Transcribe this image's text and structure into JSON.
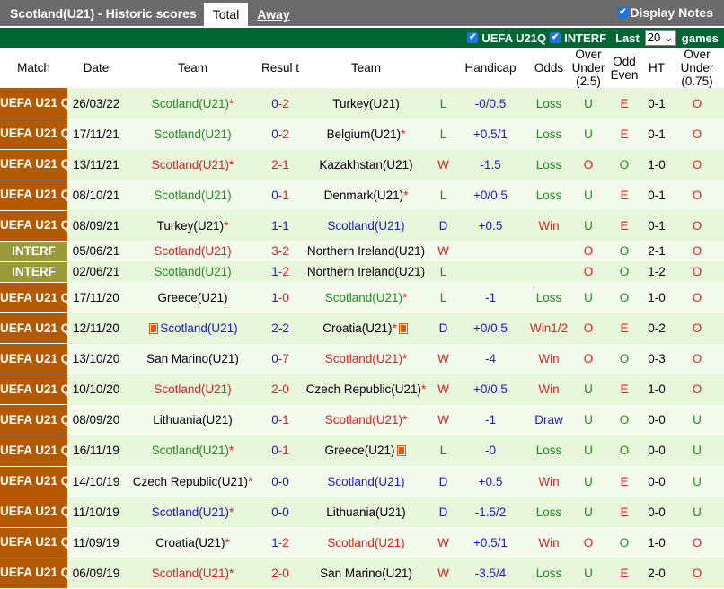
{
  "header": {
    "title": "Scotland(U21) - Historic scores",
    "tabs": [
      {
        "label": "Total",
        "active": true
      },
      {
        "label": "Away",
        "active": false
      }
    ],
    "display_notes": {
      "label": "Display Notes",
      "checked": true
    }
  },
  "filter": {
    "comps": [
      {
        "label": "UEFA U21Q",
        "checked": true
      },
      {
        "label": "INTERF",
        "checked": true
      }
    ],
    "last_label": "Last",
    "last_value": "20",
    "games_label": "games"
  },
  "columns": [
    "Match",
    "Date",
    "Team",
    "Resul t",
    "Team",
    "",
    "Handicap",
    "Odds",
    "Over Under (2.5)",
    "Odd Even",
    "HT",
    "Over Under (0.75)"
  ],
  "colors": {
    "win": "#e02020",
    "loss": "#228b22",
    "draw": "#1a1acc",
    "comp_uefa": "#b35900",
    "comp_interf": "#9a9a3a",
    "header_bar": "#006633"
  },
  "rows": [
    {
      "comp": "UEFA U21 Q",
      "date": "26/03/22",
      "home": "Scotland(U21)",
      "hs": true,
      "score": "0-2",
      "away": "Turkey(U21)",
      "as": false,
      "res": "L",
      "hcp": "-0/0.5",
      "odds": "Loss",
      "ou": "U",
      "oe": "E",
      "ht": "0-1",
      "ou2": "O",
      "scot": "home"
    },
    {
      "comp": "UEFA U21 Q",
      "date": "17/11/21",
      "home": "Scotland(U21)",
      "hs": false,
      "score": "0-2",
      "away": "Belgium(U21)",
      "as": true,
      "res": "L",
      "hcp": "+0.5/1",
      "odds": "Loss",
      "ou": "U",
      "oe": "E",
      "ht": "0-1",
      "ou2": "O",
      "scot": "home"
    },
    {
      "comp": "UEFA U21 Q",
      "date": "13/11/21",
      "home": "Scotland(U21)",
      "hs": true,
      "score": "2-1",
      "away": "Kazakhstan(U21)",
      "as": false,
      "res": "W",
      "hcp": "-1.5",
      "odds": "Loss",
      "ou": "O",
      "oe": "O",
      "ht": "1-0",
      "ou2": "O",
      "scot": "home"
    },
    {
      "comp": "UEFA U21 Q",
      "date": "08/10/21",
      "home": "Scotland(U21)",
      "hs": false,
      "score": "0-1",
      "away": "Denmark(U21)",
      "as": true,
      "res": "L",
      "hcp": "+0/0.5",
      "odds": "Loss",
      "ou": "U",
      "oe": "E",
      "ht": "0-1",
      "ou2": "O",
      "scot": "home"
    },
    {
      "comp": "UEFA U21 Q",
      "date": "08/09/21",
      "home": "Turkey(U21)",
      "hs": true,
      "score": "1-1",
      "away": "Scotland(U21)",
      "as": false,
      "res": "D",
      "hcp": "+0.5",
      "odds": "Win",
      "ou": "U",
      "oe": "E",
      "ht": "0-1",
      "ou2": "O",
      "scot": "away"
    },
    {
      "comp": "INTERF",
      "date": "05/06/21",
      "home": "Scotland(U21)",
      "hs": false,
      "score": "3-2",
      "away": "Northern Ireland(U21)",
      "as": false,
      "res": "W",
      "hcp": "",
      "odds": "",
      "ou": "O",
      "oe": "O",
      "ht": "2-1",
      "ou2": "O",
      "scot": "home"
    },
    {
      "comp": "INTERF",
      "date": "02/06/21",
      "home": "Scotland(U21)",
      "hs": false,
      "score": "1-2",
      "away": "Northern Ireland(U21)",
      "as": false,
      "res": "L",
      "hcp": "",
      "odds": "",
      "ou": "O",
      "oe": "O",
      "ht": "1-2",
      "ou2": "O",
      "scot": "home"
    },
    {
      "comp": "UEFA U21 Q",
      "date": "17/11/20",
      "home": "Greece(U21)",
      "hs": false,
      "score": "1-0",
      "away": "Scotland(U21)",
      "as": true,
      "res": "L",
      "hcp": "-1",
      "odds": "Loss",
      "ou": "U",
      "oe": "O",
      "ht": "1-0",
      "ou2": "O",
      "scot": "away"
    },
    {
      "comp": "UEFA U21 Q",
      "date": "12/11/20",
      "home": "Scotland(U21)",
      "hs": false,
      "hcard": true,
      "score": "2-2",
      "away": "Croatia(U21)",
      "as": true,
      "acard": true,
      "res": "D",
      "hcp": "+0/0.5",
      "odds": "Win1/2",
      "ou": "O",
      "oe": "E",
      "ht": "0-2",
      "ou2": "O",
      "scot": "home"
    },
    {
      "comp": "UEFA U21 Q",
      "date": "13/10/20",
      "home": "San Marino(U21)",
      "hs": false,
      "score": "0-7",
      "away": "Scotland(U21)",
      "as": true,
      "res": "W",
      "hcp": "-4",
      "odds": "Win",
      "ou": "O",
      "oe": "O",
      "ht": "0-3",
      "ou2": "O",
      "scot": "away"
    },
    {
      "comp": "UEFA U21 Q",
      "date": "10/10/20",
      "home": "Scotland(U21)",
      "hs": false,
      "score": "2-0",
      "away": "Czech Republic(U21)",
      "as": true,
      "res": "W",
      "hcp": "+0/0.5",
      "odds": "Win",
      "ou": "U",
      "oe": "E",
      "ht": "1-0",
      "ou2": "O",
      "scot": "home"
    },
    {
      "comp": "UEFA U21 Q",
      "date": "08/09/20",
      "home": "Lithuania(U21)",
      "hs": false,
      "score": "0-1",
      "away": "Scotland(U21)",
      "as": true,
      "res": "W",
      "hcp": "-1",
      "odds": "Draw",
      "ou": "U",
      "oe": "O",
      "ht": "0-0",
      "ou2": "U",
      "scot": "away"
    },
    {
      "comp": "UEFA U21 Q",
      "date": "16/11/19",
      "home": "Scotland(U21)",
      "hs": true,
      "score": "0-1",
      "away": "Greece(U21)",
      "as": false,
      "acard": true,
      "res": "L",
      "hcp": "-0",
      "odds": "Loss",
      "ou": "U",
      "oe": "O",
      "ht": "0-0",
      "ou2": "U",
      "scot": "home"
    },
    {
      "comp": "UEFA U21 Q",
      "date": "14/10/19",
      "home": "Czech Republic(U21)",
      "hs": true,
      "score": "0-0",
      "away": "Scotland(U21)",
      "as": false,
      "res": "D",
      "hcp": "+0.5",
      "odds": "Win",
      "ou": "U",
      "oe": "E",
      "ht": "0-0",
      "ou2": "U",
      "scot": "away"
    },
    {
      "comp": "UEFA U21 Q",
      "date": "11/10/19",
      "home": "Scotland(U21)",
      "hs": true,
      "score": "0-0",
      "away": "Lithuania(U21)",
      "as": false,
      "res": "D",
      "hcp": "-1.5/2",
      "odds": "Loss",
      "ou": "U",
      "oe": "E",
      "ht": "0-0",
      "ou2": "U",
      "scot": "home"
    },
    {
      "comp": "UEFA U21 Q",
      "date": "11/09/19",
      "home": "Croatia(U21)",
      "hs": true,
      "score": "1-2",
      "away": "Scotland(U21)",
      "as": false,
      "res": "W",
      "hcp": "+0.5/1",
      "odds": "Win",
      "ou": "O",
      "oe": "O",
      "ht": "1-0",
      "ou2": "O",
      "scot": "away"
    },
    {
      "comp": "UEFA U21 Q",
      "date": "06/09/19",
      "home": "Scotland(U21)",
      "hs": true,
      "score": "2-0",
      "away": "San Marino(U21)",
      "as": false,
      "res": "W",
      "hcp": "-3.5/4",
      "odds": "Loss",
      "ou": "U",
      "oe": "E",
      "ht": "2-0",
      "ou2": "O",
      "scot": "home"
    }
  ]
}
